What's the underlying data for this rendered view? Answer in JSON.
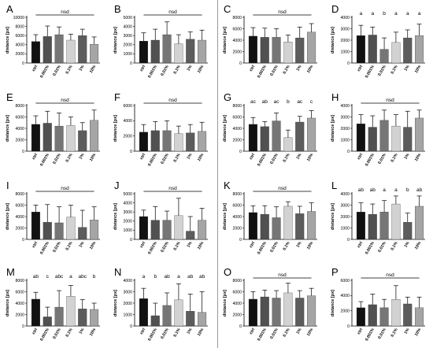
{
  "colors": {
    "bars": [
      "#111111",
      "#515151",
      "#767676",
      "#d2d2d2",
      "#5c5c5c",
      "#a5a5a5"
    ],
    "axis": "#000000",
    "divider": "#9a9a9a"
  },
  "chart_data": [
    {
      "panel": "A",
      "type": "bar",
      "ylabel": "distance [px]",
      "ylim": [
        0,
        10000
      ],
      "yticks": [
        0,
        2000,
        4000,
        6000,
        8000,
        10000
      ],
      "yticklabels": [
        "0",
        "2000",
        "4000",
        "6000",
        "8000",
        "10000"
      ],
      "categories": [
        "ctrl",
        "0.001%",
        "0.01%",
        "0.1%",
        "1%",
        "10%"
      ],
      "values": [
        4700,
        5800,
        6200,
        5000,
        6000,
        4100
      ],
      "errors": [
        1500,
        2300,
        1700,
        1300,
        1400,
        1600
      ],
      "annotation_type": "nsd",
      "annotation": "nsd"
    },
    {
      "panel": "B",
      "type": "bar",
      "ylabel": "distance [px]",
      "ylim": [
        0,
        5000
      ],
      "yticks": [
        0,
        1000,
        2000,
        3000,
        4000,
        5000
      ],
      "yticklabels": [
        "0",
        "1000",
        "2000",
        "3000",
        "4000",
        "5000"
      ],
      "categories": [
        "ctrl",
        "0.001%",
        "0.01%",
        "0.1%",
        "1%",
        "10%"
      ],
      "values": [
        2400,
        2500,
        3100,
        2100,
        2600,
        2500
      ],
      "errors": [
        900,
        1200,
        1400,
        1000,
        800,
        1100
      ],
      "annotation_type": "nsd",
      "annotation": "nsd"
    },
    {
      "panel": "C",
      "type": "bar",
      "ylabel": "distance [px]",
      "ylim": [
        0,
        8000
      ],
      "yticks": [
        0,
        2000,
        4000,
        6000,
        8000
      ],
      "yticklabels": [
        "0",
        "2000",
        "4000",
        "6000",
        "8000"
      ],
      "categories": [
        "ctrl",
        "0.001%",
        "0.01%",
        "0.1%",
        "1%",
        "10%"
      ],
      "values": [
        4700,
        4500,
        4500,
        3700,
        4400,
        5400
      ],
      "errors": [
        1500,
        1600,
        1500,
        1200,
        1900,
        1500
      ],
      "annotation_type": "nsd",
      "annotation": "nsd"
    },
    {
      "panel": "D",
      "type": "bar",
      "ylabel": "distance [px]",
      "ylim": [
        0,
        4000
      ],
      "yticks": [
        0,
        1000,
        2000,
        3000,
        4000
      ],
      "yticklabels": [
        "0",
        "1000",
        "2000",
        "3000",
        "4000"
      ],
      "categories": [
        "ctrl",
        "0.001%",
        "0.01%",
        "0.1%",
        "1%",
        "10%"
      ],
      "values": [
        2400,
        2450,
        1200,
        1800,
        2200,
        2400
      ],
      "errors": [
        900,
        700,
        1000,
        900,
        700,
        1000
      ],
      "annotation_type": "letters",
      "letters": [
        "a",
        "a",
        "b",
        "a",
        "a",
        "a"
      ]
    },
    {
      "panel": "E",
      "type": "bar",
      "ylabel": "distance [px]",
      "ylim": [
        0,
        8000
      ],
      "yticks": [
        0,
        2000,
        4000,
        6000,
        8000
      ],
      "yticklabels": [
        "0",
        "2000",
        "4000",
        "6000",
        "8000"
      ],
      "categories": [
        "ctrl",
        "0.001%",
        "0.01%",
        "0.1%",
        "1%",
        "10%"
      ],
      "values": [
        4700,
        4900,
        4400,
        4500,
        3600,
        5400
      ],
      "errors": [
        1500,
        2100,
        2300,
        1500,
        1400,
        1800
      ],
      "annotation_type": "nsd",
      "annotation": "nsd"
    },
    {
      "panel": "F",
      "type": "bar",
      "ylabel": "distance [px]",
      "ylim": [
        0,
        6000
      ],
      "yticks": [
        0,
        2000,
        4000,
        6000
      ],
      "yticklabels": [
        "0",
        "2000",
        "4000",
        "6000"
      ],
      "categories": [
        "ctrl",
        "0.001%",
        "0.01%",
        "0.1%",
        "1%",
        "10%"
      ],
      "values": [
        2500,
        2700,
        2700,
        2300,
        2400,
        2600
      ],
      "errors": [
        1000,
        1200,
        1300,
        1000,
        1100,
        1200
      ],
      "annotation_type": "nsd",
      "annotation": "nsd"
    },
    {
      "panel": "G",
      "type": "bar",
      "ylabel": "distance [px]",
      "ylim": [
        0,
        8000
      ],
      "yticks": [
        0,
        2000,
        4000,
        6000,
        8000
      ],
      "yticklabels": [
        "0",
        "2000",
        "4000",
        "6000",
        "8000"
      ],
      "categories": [
        "ctrl",
        "0.001%",
        "0.01%",
        "0.1%",
        "1%",
        "10%"
      ],
      "values": [
        4700,
        4300,
        5300,
        2400,
        5100,
        5800
      ],
      "errors": [
        1200,
        900,
        1400,
        1300,
        1000,
        1300
      ],
      "annotation_type": "letters",
      "letters": [
        "ac",
        "ab",
        "ac",
        "b",
        "ac",
        "c"
      ]
    },
    {
      "panel": "H",
      "type": "bar",
      "ylabel": "distance [px]",
      "ylim": [
        0,
        4000
      ],
      "yticks": [
        0,
        1000,
        2000,
        3000,
        4000
      ],
      "yticklabels": [
        "0",
        "1000",
        "2000",
        "3000",
        "4000"
      ],
      "categories": [
        "ctrl",
        "0.001%",
        "0.01%",
        "0.1%",
        "1%",
        "10%"
      ],
      "values": [
        2400,
        2100,
        2700,
        2200,
        2100,
        2900
      ],
      "errors": [
        800,
        1000,
        900,
        1000,
        1400,
        700
      ],
      "annotation_type": "nsd",
      "annotation": "nsd"
    },
    {
      "panel": "I",
      "type": "bar",
      "ylabel": "distance [px]",
      "ylim": [
        0,
        8000
      ],
      "yticks": [
        0,
        2000,
        4000,
        6000,
        8000
      ],
      "yticklabels": [
        "0",
        "2000",
        "4000",
        "6000",
        "8000"
      ],
      "categories": [
        "ctrl",
        "0.001%",
        "0.01%",
        "0.1%",
        "1%",
        "10%"
      ],
      "values": [
        4800,
        3000,
        2900,
        3900,
        2100,
        3400
      ],
      "errors": [
        1200,
        3100,
        2800,
        2100,
        3000,
        2300
      ],
      "annotation_type": "nsd",
      "annotation": "nsd"
    },
    {
      "panel": "J",
      "type": "bar",
      "ylabel": "distance [px]",
      "ylim": [
        0,
        5000
      ],
      "yticks": [
        0,
        1000,
        2000,
        3000,
        4000,
        5000
      ],
      "yticklabels": [
        "0",
        "1000",
        "2000",
        "3000",
        "4000",
        "5000"
      ],
      "categories": [
        "ctrl",
        "0.001%",
        "0.01%",
        "0.1%",
        "1%",
        "10%"
      ],
      "values": [
        2500,
        2100,
        2100,
        2600,
        900,
        2100
      ],
      "errors": [
        700,
        1500,
        1000,
        1900,
        1600,
        1300
      ],
      "annotation_type": "nsd",
      "annotation": "nsd"
    },
    {
      "panel": "K",
      "type": "bar",
      "ylabel": "distance [px]",
      "ylim": [
        0,
        8000
      ],
      "yticks": [
        0,
        2000,
        4000,
        6000,
        8000
      ],
      "yticklabels": [
        "0",
        "2000",
        "4000",
        "6000",
        "8000"
      ],
      "categories": [
        "ctrl",
        "0.001%",
        "0.01%",
        "0.1%",
        "1%",
        "10%"
      ],
      "values": [
        4700,
        4400,
        3800,
        5800,
        4500,
        4900
      ],
      "errors": [
        1200,
        1500,
        1900,
        800,
        1300,
        1500
      ],
      "annotation_type": "nsd",
      "annotation": "nsd"
    },
    {
      "panel": "L",
      "type": "bar",
      "ylabel": "distance [px]",
      "ylim": [
        0,
        4000
      ],
      "yticks": [
        0,
        1000,
        2000,
        3000,
        4000
      ],
      "yticklabels": [
        "0",
        "1000",
        "2000",
        "3000",
        "4000"
      ],
      "categories": [
        "ctrl",
        "0.001%",
        "0.01%",
        "0.1%",
        "1%",
        "10%"
      ],
      "values": [
        2400,
        2200,
        2400,
        3100,
        1500,
        2900
      ],
      "errors": [
        800,
        900,
        1000,
        700,
        800,
        900
      ],
      "annotation_type": "letters",
      "letters": [
        "ab",
        "ab",
        "a",
        "a",
        "b",
        "ab"
      ]
    },
    {
      "panel": "M",
      "type": "bar",
      "ylabel": "distance [px]",
      "ylim": [
        0,
        8000
      ],
      "yticks": [
        0,
        2000,
        4000,
        6000,
        8000
      ],
      "yticklabels": [
        "0",
        "2000",
        "4000",
        "6000",
        "8000"
      ],
      "categories": [
        "ctrl",
        "0.001%",
        "0.01%",
        "0.1%",
        "1%",
        "10%"
      ],
      "values": [
        4700,
        1600,
        3300,
        5200,
        3000,
        2900
      ],
      "errors": [
        1200,
        1700,
        2900,
        1900,
        1600,
        1100
      ],
      "annotation_type": "letters",
      "letters": [
        "ab",
        "c",
        "abc",
        "a",
        "abc",
        "b"
      ]
    },
    {
      "panel": "N",
      "type": "bar",
      "ylabel": "distance [px]",
      "ylim": [
        0,
        4000
      ],
      "yticks": [
        0,
        1000,
        2000,
        3000,
        4000
      ],
      "yticklabels": [
        "0",
        "1000",
        "2000",
        "3000",
        "4000"
      ],
      "categories": [
        "ctrl",
        "0.001%",
        "0.01%",
        "0.1%",
        "1%",
        "10%"
      ],
      "values": [
        2400,
        900,
        1800,
        2300,
        1300,
        1200
      ],
      "errors": [
        900,
        1100,
        1100,
        1400,
        1500,
        1800
      ],
      "annotation_type": "letters",
      "letters": [
        "a",
        "b",
        "ab",
        "a",
        "ab",
        "ab"
      ]
    },
    {
      "panel": "O",
      "type": "bar",
      "ylabel": "distance [px]",
      "ylim": [
        0,
        8000
      ],
      "yticks": [
        0,
        2000,
        4000,
        6000,
        8000
      ],
      "yticklabels": [
        "0",
        "2000",
        "4000",
        "6000",
        "8000"
      ],
      "categories": [
        "ctrl",
        "0.001%",
        "0.01%",
        "0.1%",
        "1%",
        "10%"
      ],
      "values": [
        4700,
        5100,
        4900,
        5800,
        4900,
        5300
      ],
      "errors": [
        1300,
        1200,
        1300,
        1700,
        1300,
        1300
      ],
      "annotation_type": "nsd",
      "annotation": "nsd"
    },
    {
      "panel": "P",
      "type": "bar",
      "ylabel": "distance [px]",
      "ylim": [
        0,
        6000
      ],
      "yticks": [
        0,
        2000,
        4000,
        6000
      ],
      "yticklabels": [
        "0",
        "2000",
        "4000",
        "6000"
      ],
      "categories": [
        "ctrl",
        "0.001%",
        "0.01%",
        "0.1%",
        "1%",
        "10%"
      ],
      "values": [
        2400,
        2800,
        2400,
        3500,
        2900,
        2400
      ],
      "errors": [
        800,
        1400,
        1100,
        1800,
        900,
        1400
      ],
      "annotation_type": "nsd",
      "annotation": "nsd"
    }
  ]
}
